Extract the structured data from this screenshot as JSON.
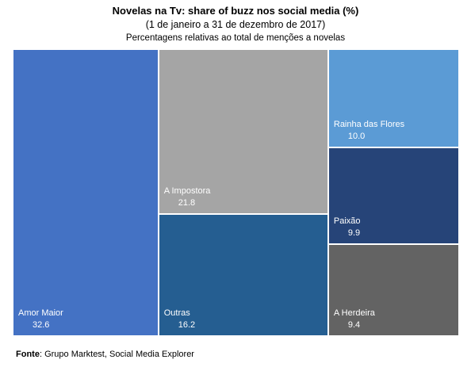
{
  "chart": {
    "title": "Novelas na Tv: share of buzz nos social media (%)",
    "subtitle": "(1 de janeiro a 31 de dezembro de 2017)",
    "note": "Percentagens relativas ao total de menções a novelas"
  },
  "source": {
    "label": "Fonte",
    "text": ": Grupo Marktest, Social Media Explorer"
  },
  "chart_data": {
    "type": "treemap",
    "title": "Novelas na Tv: share of buzz nos social media (%)",
    "subtitle": "(1 de janeiro a 31 de dezembro de 2017)",
    "unit": "%",
    "items": [
      {
        "name": "Amor Maior",
        "value": 32.6,
        "display": "32.6",
        "color": "#4472C4"
      },
      {
        "name": "A Impostora",
        "value": 21.8,
        "display": "21.8",
        "color": "#A5A5A5"
      },
      {
        "name": "Outras",
        "value": 16.2,
        "display": "16.2",
        "color": "#255E91"
      },
      {
        "name": "Rainha das Flores",
        "value": 10.0,
        "display": "10.0",
        "color": "#5B9BD5"
      },
      {
        "name": "Paixão",
        "value": 9.9,
        "display": "9.9",
        "color": "#264478"
      },
      {
        "name": "A Herdeira",
        "value": 9.4,
        "display": "9.4",
        "color": "#636363"
      }
    ]
  }
}
